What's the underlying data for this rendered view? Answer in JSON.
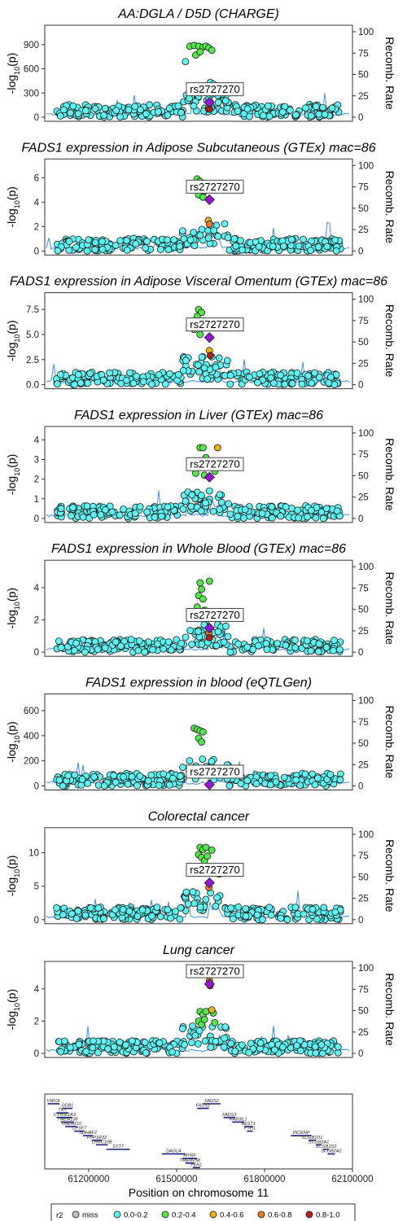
{
  "chart_data": {
    "type": "scatter",
    "lead_snp": "rs2727270",
    "panels": [
      {
        "title": "AA:DGLA / D5D (CHARGE)",
        "yticks": [
          0,
          300,
          600,
          900
        ],
        "ymax": 1120,
        "lead_y": 185,
        "high": [
          {
            "x": 61545000,
            "y": 880,
            "r2": "0.2-0.4"
          },
          {
            "x": 61560000,
            "y": 890,
            "r2": "0.2-0.4"
          },
          {
            "x": 61575000,
            "y": 880,
            "r2": "0.2-0.4"
          },
          {
            "x": 61590000,
            "y": 870,
            "r2": "0.2-0.4"
          },
          {
            "x": 61600000,
            "y": 880,
            "r2": "0.2-0.4"
          },
          {
            "x": 61610000,
            "y": 860,
            "r2": "0.2-0.4"
          },
          {
            "x": 61620000,
            "y": 830,
            "r2": "0.2-0.4"
          },
          {
            "x": 61565000,
            "y": 770,
            "r2": "0.2-0.4"
          },
          {
            "x": 61580000,
            "y": 810,
            "r2": "0.2-0.4"
          },
          {
            "x": 61530000,
            "y": 690,
            "r2": "0.0-0.2"
          },
          {
            "x": 61615000,
            "y": 430,
            "r2": "0.0-0.2"
          },
          {
            "x": 61625000,
            "y": 410,
            "r2": "0.0-0.2"
          },
          {
            "x": 61635000,
            "y": 390,
            "r2": "0.0-0.2"
          },
          {
            "x": 61610000,
            "y": 120,
            "r2": "0.6-0.8"
          },
          {
            "x": 61612000,
            "y": 100,
            "r2": "0.8-1.0"
          }
        ]
      },
      {
        "title": "FADS1 expression in Adipose Subcutaneous (GTEx) mac=86",
        "yticks": [
          0,
          2,
          4,
          6
        ],
        "ymax": 7.4,
        "lead_y": 4.2,
        "high": [
          {
            "x": 61570000,
            "y": 5.9,
            "r2": "0.2-0.4"
          },
          {
            "x": 61580000,
            "y": 5.7,
            "r2": "0.2-0.4"
          },
          {
            "x": 61560000,
            "y": 5.5,
            "r2": "0.2-0.4"
          },
          {
            "x": 61585000,
            "y": 5.3,
            "r2": "0.2-0.4"
          },
          {
            "x": 61550000,
            "y": 5.1,
            "r2": "0.2-0.4"
          },
          {
            "x": 61595000,
            "y": 4.9,
            "r2": "0.2-0.4"
          },
          {
            "x": 61575000,
            "y": 4.6,
            "r2": "0.2-0.4"
          },
          {
            "x": 61590000,
            "y": 4.4,
            "r2": "0.2-0.4"
          },
          {
            "x": 61608000,
            "y": 2.5,
            "r2": "0.4-0.6"
          },
          {
            "x": 61612000,
            "y": 2.2,
            "r2": "0.6-0.8"
          }
        ]
      },
      {
        "title": "FADS1 expression in Adipose Visceral Omentum (GTEx) mac=86",
        "yticks": [
          0,
          2.5,
          5,
          7.5
        ],
        "yticklabels": [
          "0.0",
          "2.5",
          "5.0",
          "7.5"
        ],
        "ymax": 9.0,
        "lead_y": 4.7,
        "high": [
          {
            "x": 61575000,
            "y": 7.5,
            "r2": "0.2-0.4"
          },
          {
            "x": 61585000,
            "y": 7.2,
            "r2": "0.2-0.4"
          },
          {
            "x": 61570000,
            "y": 6.8,
            "r2": "0.2-0.4"
          },
          {
            "x": 61565000,
            "y": 6.2,
            "r2": "0.2-0.4"
          },
          {
            "x": 61590000,
            "y": 5.9,
            "r2": "0.2-0.4"
          },
          {
            "x": 61560000,
            "y": 5.5,
            "r2": "0.2-0.4"
          },
          {
            "x": 61580000,
            "y": 5.0,
            "r2": "0.2-0.4"
          },
          {
            "x": 61612000,
            "y": 3.4,
            "r2": "0.4-0.6"
          },
          {
            "x": 61615000,
            "y": 2.9,
            "r2": "0.8-1.0"
          }
        ]
      },
      {
        "title": "FADS1 expression in Liver (GTEx) mac=86",
        "yticks": [
          0,
          1,
          2,
          3,
          4
        ],
        "ymax": 4.6,
        "lead_y": 2.1,
        "high": [
          {
            "x": 61580000,
            "y": 3.6,
            "r2": "0.2-0.4"
          },
          {
            "x": 61590000,
            "y": 3.6,
            "r2": "0.2-0.4"
          },
          {
            "x": 61640000,
            "y": 3.6,
            "r2": "0.4-0.6"
          },
          {
            "x": 61600000,
            "y": 3.1,
            "r2": "0.2-0.4"
          },
          {
            "x": 61575000,
            "y": 2.6,
            "r2": "0.2-0.4"
          },
          {
            "x": 61585000,
            "y": 2.6,
            "r2": "0.2-0.4"
          },
          {
            "x": 61610000,
            "y": 2.8,
            "r2": "0.4-0.6"
          },
          {
            "x": 61565000,
            "y": 2.3,
            "r2": "0.2-0.4"
          },
          {
            "x": 61595000,
            "y": 2.2,
            "r2": "0.2-0.4"
          },
          {
            "x": 61620000,
            "y": 2.6,
            "r2": "0.2-0.4"
          },
          {
            "x": 61630000,
            "y": 2.4,
            "r2": "0.2-0.4"
          }
        ]
      },
      {
        "title": "FADS1 expression in Whole Blood (GTEx) mac=86",
        "yticks": [
          0,
          2,
          4
        ],
        "ymax": 5.6,
        "lead_y": 1.5,
        "high": [
          {
            "x": 61580000,
            "y": 4.3,
            "r2": "0.2-0.4"
          },
          {
            "x": 61612000,
            "y": 4.4,
            "r2": "0.2-0.4"
          },
          {
            "x": 61585000,
            "y": 3.9,
            "r2": "0.2-0.4"
          },
          {
            "x": 61575000,
            "y": 3.5,
            "r2": "0.2-0.4"
          },
          {
            "x": 61590000,
            "y": 3.3,
            "r2": "0.2-0.4"
          },
          {
            "x": 61570000,
            "y": 2.8,
            "r2": "0.2-0.4"
          },
          {
            "x": 61595000,
            "y": 2.6,
            "r2": "0.2-0.4"
          },
          {
            "x": 61620000,
            "y": 2.2,
            "r2": "0.2-0.4"
          },
          {
            "x": 61610000,
            "y": 1.2,
            "r2": "0.6-0.8"
          },
          {
            "x": 61612000,
            "y": 0.9,
            "r2": "0.8-1.0"
          }
        ]
      },
      {
        "title": "FADS1 expression in blood (eQTLGen)",
        "yticks": [
          0,
          200,
          400,
          600
        ],
        "ymax": 720,
        "lead_y": 10,
        "high": [
          {
            "x": 61560000,
            "y": 460,
            "r2": "0.2-0.4"
          },
          {
            "x": 61570000,
            "y": 450,
            "r2": "0.2-0.4"
          },
          {
            "x": 61580000,
            "y": 440,
            "r2": "0.2-0.4"
          },
          {
            "x": 61590000,
            "y": 430,
            "r2": "0.2-0.4"
          },
          {
            "x": 61575000,
            "y": 380,
            "r2": "0.2-0.4"
          },
          {
            "x": 61585000,
            "y": 350,
            "r2": "0.2-0.4"
          }
        ]
      },
      {
        "title": "Colorectal cancer",
        "yticks": [
          0,
          5,
          10
        ],
        "ymax": 13.5,
        "lead_y": 5.5,
        "high": [
          {
            "x": 61580000,
            "y": 10.8,
            "r2": "0.2-0.4"
          },
          {
            "x": 61590000,
            "y": 10.5,
            "r2": "0.2-0.4"
          },
          {
            "x": 61600000,
            "y": 10.8,
            "r2": "0.2-0.4"
          },
          {
            "x": 61575000,
            "y": 9.7,
            "r2": "0.2-0.4"
          },
          {
            "x": 61585000,
            "y": 9.3,
            "r2": "0.2-0.4"
          },
          {
            "x": 61595000,
            "y": 8.8,
            "r2": "0.2-0.4"
          },
          {
            "x": 61605000,
            "y": 9.5,
            "r2": "0.2-0.4"
          },
          {
            "x": 61620000,
            "y": 10.4,
            "r2": "0.2-0.4"
          },
          {
            "x": 61640000,
            "y": 7.2,
            "r2": "0.6-0.8"
          },
          {
            "x": 61645000,
            "y": 6.8,
            "r2": "0.4-0.6"
          },
          {
            "x": 61610000,
            "y": 4.8,
            "r2": "0.6-0.8"
          }
        ]
      },
      {
        "title": "Lung cancer",
        "yticks": [
          0,
          2,
          4
        ],
        "ymax": 5.6,
        "lead_y": 4.3,
        "high": [
          {
            "x": 61580000,
            "y": 2.6,
            "r2": "0.2-0.4"
          },
          {
            "x": 61590000,
            "y": 2.4,
            "r2": "0.2-0.4"
          },
          {
            "x": 61600000,
            "y": 2.6,
            "r2": "0.2-0.4"
          },
          {
            "x": 61575000,
            "y": 2.0,
            "r2": "0.2-0.4"
          },
          {
            "x": 61585000,
            "y": 1.8,
            "r2": "0.2-0.4"
          },
          {
            "x": 61595000,
            "y": 2.1,
            "r2": "0.2-0.4"
          },
          {
            "x": 61625000,
            "y": 2.5,
            "r2": "0.2-0.4"
          },
          {
            "x": 61630000,
            "y": 1.9,
            "r2": "0.2-0.4"
          },
          {
            "x": 61612000,
            "y": 4.5,
            "r2": "0.6-0.8"
          },
          {
            "x": 61614000,
            "y": 4.2,
            "r2": "0.8-1.0"
          },
          {
            "x": 61620000,
            "y": 2.7,
            "r2": "0.4-0.6"
          }
        ]
      }
    ],
    "right_axis": {
      "label": "Recomb. Rate",
      "ticks": [
        0,
        25,
        50,
        75,
        100
      ],
      "range": [
        0,
        100
      ]
    },
    "ylabel_prefix": "-log",
    "ylabel_sub": "10",
    "ylabel_suffix": "(p)",
    "xlabel": "Position on chromosome 11",
    "xticks": [
      61200000,
      61500000,
      61800000,
      62100000
    ],
    "xlim": [
      61050000,
      62100000
    ],
    "genes": [
      {
        "name": "VWCE",
        "x0": 61060000,
        "x1": 61100000,
        "row": 0
      },
      {
        "name": "DDB1",
        "x0": 61110000,
        "x1": 61145000,
        "row": 1
      },
      {
        "name": "TKT",
        "x0": 61090000,
        "x1": 61130000,
        "row": 2
      },
      {
        "name": "CYB561A3",
        "x0": 61090000,
        "x1": 61145000,
        "row": 3
      },
      {
        "name": "TMEM138",
        "x0": 61105000,
        "x1": 61150000,
        "row": 4
      },
      {
        "name": "TMEM216",
        "x0": 61120000,
        "x1": 61160000,
        "row": 5
      },
      {
        "name": "CPSF7",
        "x0": 61150000,
        "x1": 61185000,
        "row": 6
      },
      {
        "name": "SDHAF2",
        "x0": 61180000,
        "x1": 61215000,
        "row": 7
      },
      {
        "name": "PPP1R32",
        "x0": 61210000,
        "x1": 61245000,
        "row": 8
      },
      {
        "name": "LRRC10B",
        "x0": 61225000,
        "x1": 61265000,
        "row": 9
      },
      {
        "name": "SYT7",
        "x0": 61260000,
        "x1": 61340000,
        "row": 10
      },
      {
        "name": "DAGLA",
        "x0": 61450000,
        "x1": 61530000,
        "row": 11
      },
      {
        "name": "MYRF",
        "x0": 61520000,
        "x1": 61570000,
        "row": 12
      },
      {
        "name": "TMEM258",
        "x0": 61530000,
        "x1": 61560000,
        "row": 13
      },
      {
        "name": "FEN1",
        "x0": 61555000,
        "x1": 61580000,
        "row": 14
      },
      {
        "name": "FADS2",
        "x0": 61590000,
        "x1": 61650000,
        "row": 0
      },
      {
        "name": "FADS1",
        "x0": 61570000,
        "x1": 61610000,
        "row": 1
      },
      {
        "name": "FADS3",
        "x0": 61660000,
        "x1": 61700000,
        "row": 3
      },
      {
        "name": "RAB3IL1",
        "x0": 61690000,
        "x1": 61730000,
        "row": 4
      },
      {
        "name": "BEST1",
        "x0": 61730000,
        "x1": 61760000,
        "row": 5
      },
      {
        "name": "FTH1",
        "x0": 61740000,
        "x1": 61760000,
        "row": 6
      },
      {
        "name": "INCENP",
        "x0": 61890000,
        "x1": 61960000,
        "row": 7
      },
      {
        "name": "SCGB1D1",
        "x0": 61950000,
        "x1": 61975000,
        "row": 8
      },
      {
        "name": "SCGB2A1",
        "x0": 61975000,
        "x1": 61995000,
        "row": 9
      },
      {
        "name": "SCGB1D2",
        "x0": 62000000,
        "x1": 62020000,
        "row": 10
      },
      {
        "name": "SCGB2A2",
        "x0": 62015000,
        "x1": 62040000,
        "row": 11
      }
    ],
    "legend": {
      "title": "r2",
      "items": [
        {
          "label": "miss",
          "color": "#bfbfbf"
        },
        {
          "label": "0.0-0.2",
          "color": "#5cf5f3"
        },
        {
          "label": "0.2-0.4",
          "color": "#55e84a"
        },
        {
          "label": "0.4-0.6",
          "color": "#f2b01a"
        },
        {
          "label": "0.6-0.8",
          "color": "#ea7b1f"
        },
        {
          "label": "0.8-1.0",
          "color": "#b02218"
        }
      ]
    },
    "colors": {
      "lead": "#9416d6",
      "recomb": "#3d8ef0",
      "gene": "#1a2080"
    }
  }
}
